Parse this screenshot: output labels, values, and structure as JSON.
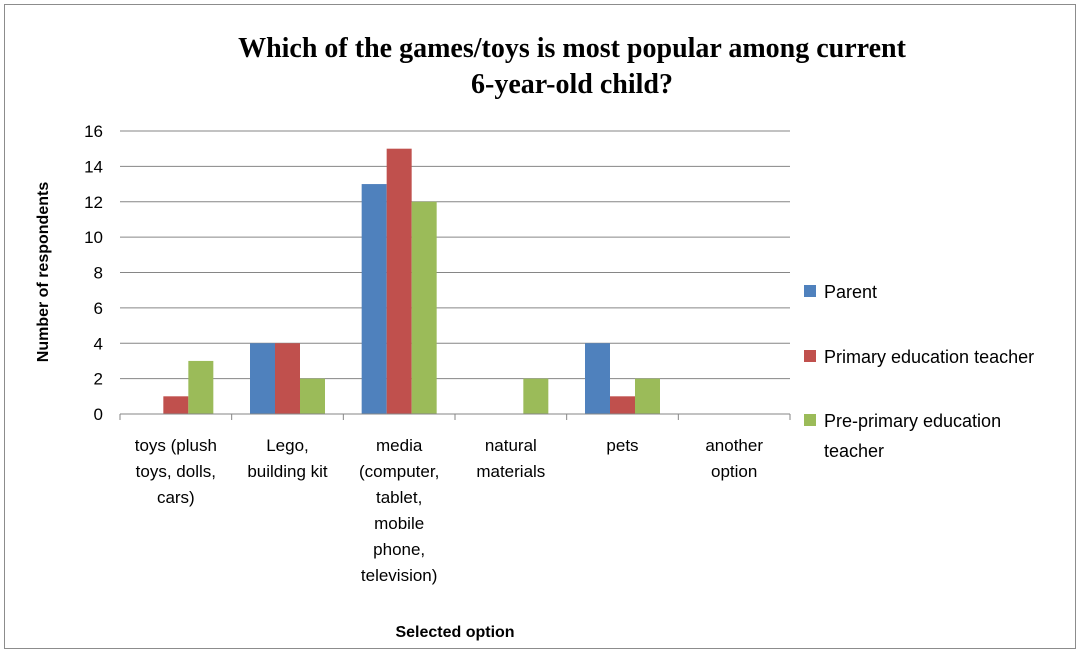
{
  "chart_data": {
    "type": "bar",
    "title_lines": [
      "Which of the games/toys is most popular among current",
      "6-year-old child?"
    ],
    "xlabel": "Selected option",
    "ylabel": "Number of respondents",
    "ylim": [
      0,
      16
    ],
    "yticks": [
      0,
      2,
      4,
      6,
      8,
      10,
      12,
      14,
      16
    ],
    "grid": true,
    "legend_position": "right",
    "categories": [
      [
        "toys (plush",
        "toys, dolls,",
        "cars)"
      ],
      [
        "Lego,",
        "building kit"
      ],
      [
        "media",
        "(computer,",
        "tablet,",
        "mobile",
        "phone,",
        "television)"
      ],
      [
        "natural",
        "materials"
      ],
      [
        "pets"
      ],
      [
        "another",
        "option"
      ]
    ],
    "series": [
      {
        "name": "Parent",
        "name_lines": [
          "Parent"
        ],
        "color": "#4f81bd",
        "values": [
          0,
          4,
          13,
          0,
          4,
          0
        ]
      },
      {
        "name": "Primary education teacher",
        "name_lines": [
          "Primary education teacher"
        ],
        "color": "#c0504d",
        "values": [
          1,
          4,
          15,
          0,
          1,
          0
        ]
      },
      {
        "name": "Pre-primary education teacher",
        "name_lines": [
          "Pre-primary education",
          "teacher"
        ],
        "color": "#9bbb59",
        "values": [
          3,
          2,
          12,
          2,
          2,
          0
        ]
      }
    ]
  }
}
